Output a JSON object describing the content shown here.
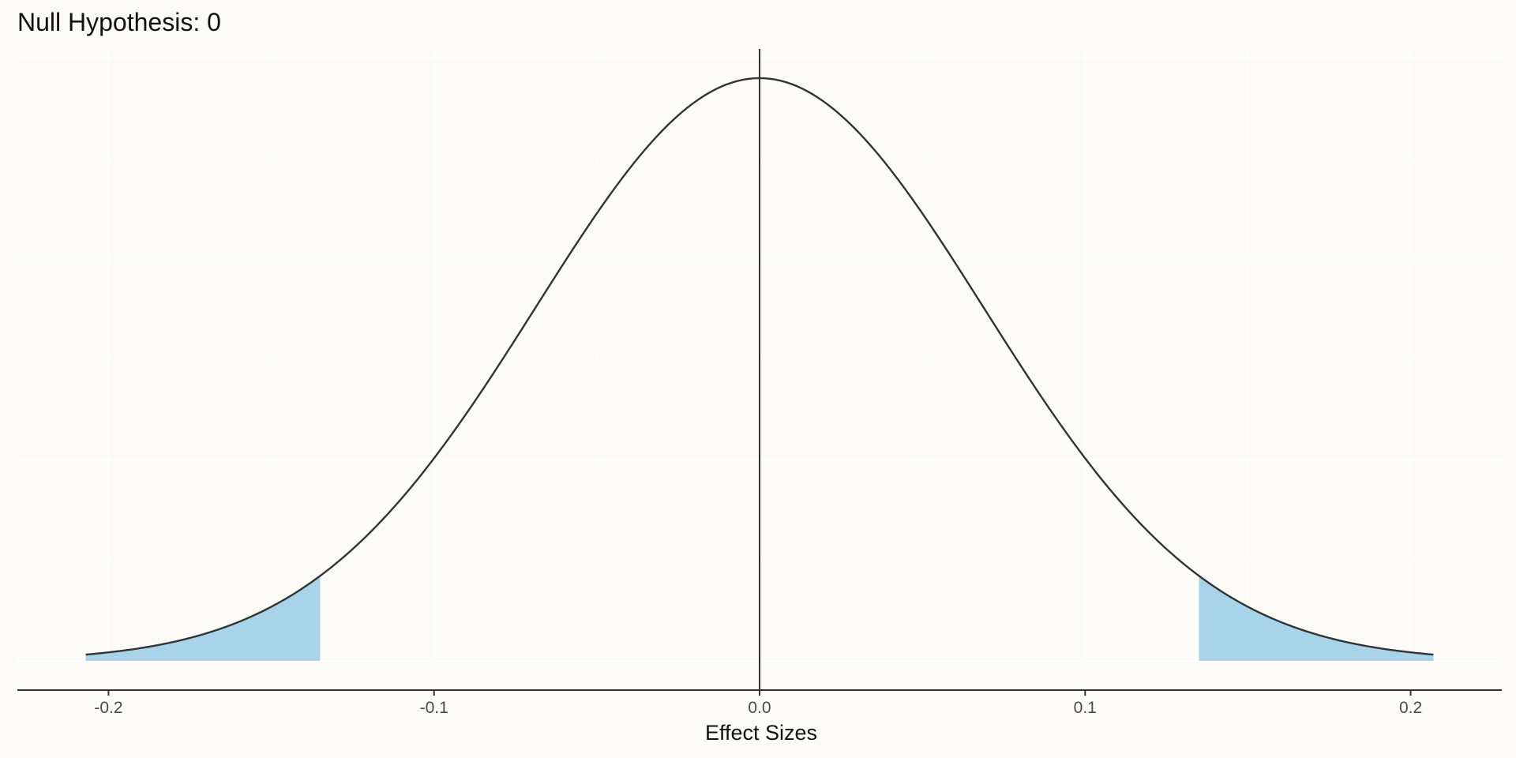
{
  "colors": {
    "background": "#fdfbf7",
    "grid": "#ffffff",
    "curve": "#333333",
    "reference_line": "#333333",
    "tail_fill": "#a8d3e8",
    "axis": "#333333",
    "tick_label": "#4a4a4a",
    "text": "#111111"
  },
  "chart_data": {
    "type": "area",
    "title": "Null Hypothesis: 0",
    "xlabel": "Effect Sizes",
    "ylabel": "",
    "x_ticks": [
      -0.2,
      -0.1,
      0.0,
      0.1,
      0.2
    ],
    "x_tick_labels": [
      "-0.2",
      "-0.1",
      "0.0",
      "0.1",
      "0.2"
    ],
    "xlim": [
      -0.228,
      0.228
    ],
    "y_axis_visible": false,
    "grid": true,
    "distribution": {
      "kind": "normal",
      "mean": 0.0,
      "sd": 0.0688,
      "x_range": [
        -0.207,
        0.207
      ]
    },
    "reference_line_x": 0.0,
    "shaded_regions": [
      {
        "from": -0.207,
        "to": -0.135
      },
      {
        "from": 0.135,
        "to": 0.207
      }
    ]
  }
}
